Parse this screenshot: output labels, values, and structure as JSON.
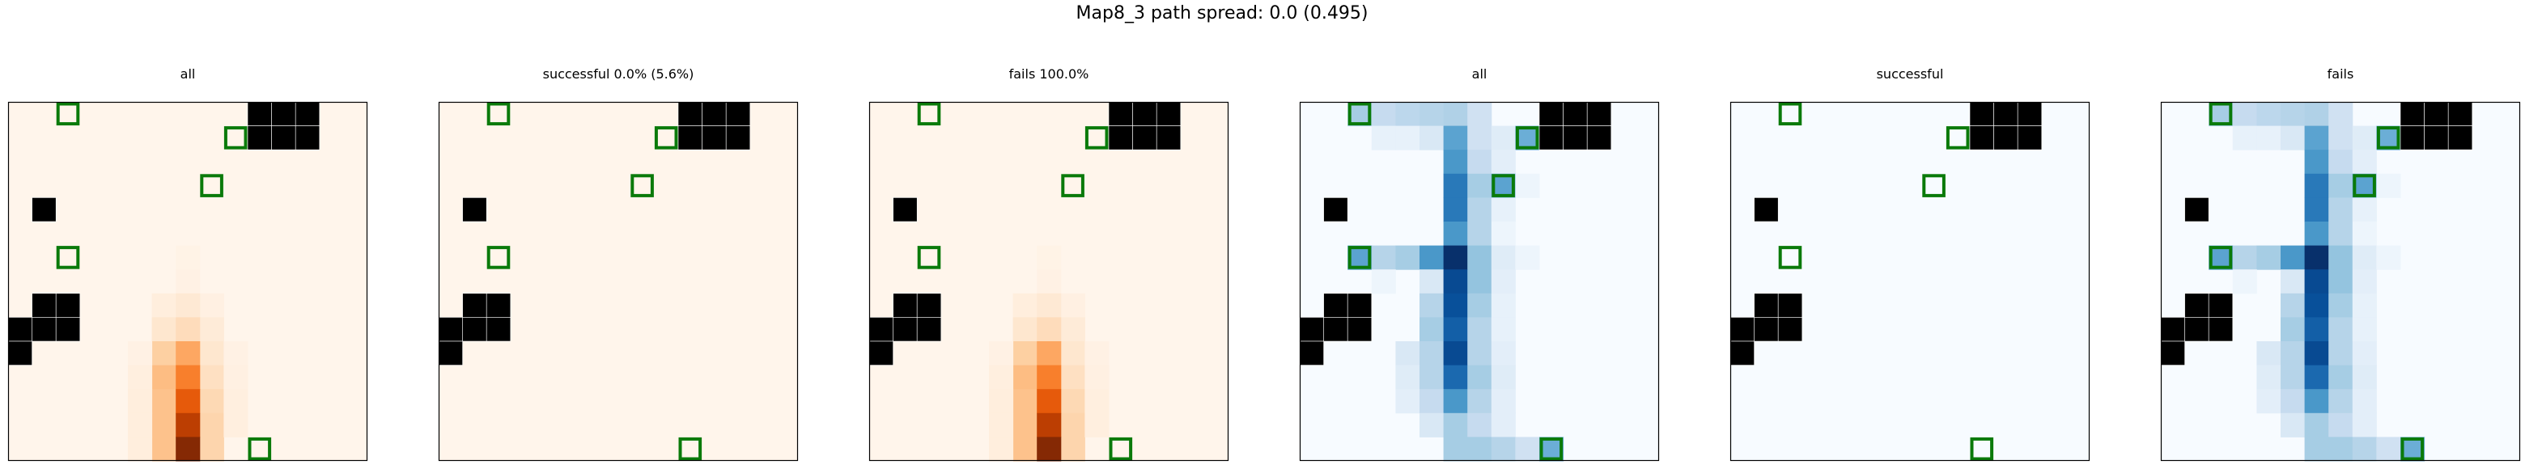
{
  "title": "Map8_3 path spread: 0.0 (0.495)",
  "chart_data": {
    "type": "heatmap",
    "title": "Map8_3 path spread: 0.0 (0.495)",
    "grid_size": [
      15,
      15
    ],
    "obstacles": [
      [
        10,
        0
      ],
      [
        11,
        0
      ],
      [
        12,
        0
      ],
      [
        10,
        1
      ],
      [
        11,
        1
      ],
      [
        12,
        1
      ],
      [
        1,
        4
      ],
      [
        1,
        8
      ],
      [
        2,
        8
      ],
      [
        1,
        9
      ],
      [
        2,
        9
      ],
      [
        0,
        9
      ],
      [
        0,
        10
      ]
    ],
    "goals": [
      [
        2,
        0
      ],
      [
        9,
        1
      ],
      [
        8,
        3
      ],
      [
        2,
        6
      ],
      [
        10,
        14
      ]
    ],
    "axes": false,
    "panels": [
      {
        "name": "all",
        "title": "all",
        "colormap": "Oranges",
        "cells": [
          [
            7,
            6,
            0.02
          ],
          [
            7,
            7,
            0.03
          ],
          [
            7,
            8,
            0.05
          ],
          [
            7,
            9,
            0.08
          ],
          [
            7,
            10,
            0.12
          ],
          [
            7,
            11,
            0.15
          ],
          [
            7,
            12,
            0.18
          ],
          [
            7,
            13,
            0.22
          ],
          [
            7,
            14,
            0.25
          ],
          [
            6,
            8,
            0.06
          ],
          [
            6,
            9,
            0.12
          ],
          [
            6,
            10,
            0.25
          ],
          [
            6,
            11,
            0.32
          ],
          [
            6,
            12,
            0.3
          ],
          [
            6,
            13,
            0.3
          ],
          [
            6,
            14,
            0.3
          ],
          [
            8,
            8,
            0.04
          ],
          [
            8,
            9,
            0.08
          ],
          [
            8,
            10,
            0.12
          ],
          [
            8,
            11,
            0.16
          ],
          [
            8,
            12,
            0.2
          ],
          [
            8,
            13,
            0.22
          ],
          [
            8,
            14,
            0.22
          ],
          [
            5,
            10,
            0.03
          ],
          [
            5,
            11,
            0.05
          ],
          [
            5,
            12,
            0.06
          ],
          [
            5,
            13,
            0.06
          ],
          [
            5,
            14,
            0.06
          ],
          [
            9,
            10,
            0.03
          ],
          [
            9,
            11,
            0.04
          ],
          [
            9,
            12,
            0.05
          ],
          [
            9,
            13,
            0.05
          ],
          [
            7,
            8,
            0.1
          ],
          [
            7,
            9,
            0.18
          ],
          [
            7,
            10,
            0.4
          ],
          [
            7,
            11,
            0.55
          ],
          [
            7,
            12,
            0.68
          ],
          [
            7,
            13,
            0.82
          ],
          [
            7,
            14,
            0.98
          ]
        ]
      },
      {
        "name": "successful",
        "title": "successful 0.0% (5.6%)",
        "colormap": "Oranges",
        "cells": []
      },
      {
        "name": "fails",
        "title": "fails 100.0%",
        "colormap": "Oranges",
        "cells": [
          [
            7,
            6,
            0.02
          ],
          [
            7,
            7,
            0.03
          ],
          [
            7,
            8,
            0.05
          ],
          [
            7,
            9,
            0.08
          ],
          [
            7,
            10,
            0.12
          ],
          [
            7,
            11,
            0.15
          ],
          [
            7,
            12,
            0.18
          ],
          [
            7,
            13,
            0.22
          ],
          [
            7,
            14,
            0.25
          ],
          [
            6,
            8,
            0.06
          ],
          [
            6,
            9,
            0.12
          ],
          [
            6,
            10,
            0.25
          ],
          [
            6,
            11,
            0.32
          ],
          [
            6,
            12,
            0.3
          ],
          [
            6,
            13,
            0.3
          ],
          [
            6,
            14,
            0.3
          ],
          [
            8,
            8,
            0.04
          ],
          [
            8,
            9,
            0.08
          ],
          [
            8,
            10,
            0.12
          ],
          [
            8,
            11,
            0.16
          ],
          [
            8,
            12,
            0.2
          ],
          [
            8,
            13,
            0.22
          ],
          [
            8,
            14,
            0.22
          ],
          [
            5,
            10,
            0.03
          ],
          [
            5,
            11,
            0.05
          ],
          [
            5,
            12,
            0.06
          ],
          [
            5,
            13,
            0.06
          ],
          [
            5,
            14,
            0.06
          ],
          [
            9,
            10,
            0.03
          ],
          [
            9,
            11,
            0.04
          ],
          [
            9,
            12,
            0.05
          ],
          [
            9,
            13,
            0.05
          ],
          [
            7,
            8,
            0.1
          ],
          [
            7,
            9,
            0.18
          ],
          [
            7,
            10,
            0.4
          ],
          [
            7,
            11,
            0.55
          ],
          [
            7,
            12,
            0.68
          ],
          [
            7,
            13,
            0.82
          ],
          [
            7,
            14,
            0.98
          ]
        ]
      },
      {
        "name": "all-blues",
        "title": "all",
        "colormap": "Blues",
        "cells": [
          [
            2,
            0,
            0.35
          ],
          [
            3,
            0,
            0.25
          ],
          [
            4,
            0,
            0.28
          ],
          [
            5,
            0,
            0.3
          ],
          [
            6,
            0,
            0.32
          ],
          [
            7,
            0,
            0.2
          ],
          [
            3,
            1,
            0.08
          ],
          [
            4,
            1,
            0.08
          ],
          [
            5,
            1,
            0.15
          ],
          [
            6,
            1,
            0.55
          ],
          [
            7,
            1,
            0.2
          ],
          [
            8,
            1,
            0.12
          ],
          [
            9,
            1,
            0.5
          ],
          [
            6,
            2,
            0.6
          ],
          [
            7,
            2,
            0.25
          ],
          [
            8,
            2,
            0.1
          ],
          [
            6,
            3,
            0.72
          ],
          [
            7,
            3,
            0.35
          ],
          [
            8,
            3,
            0.55
          ],
          [
            9,
            3,
            0.05
          ],
          [
            6,
            4,
            0.72
          ],
          [
            7,
            4,
            0.3
          ],
          [
            8,
            4,
            0.08
          ],
          [
            6,
            5,
            0.6
          ],
          [
            7,
            5,
            0.3
          ],
          [
            8,
            5,
            0.05
          ],
          [
            2,
            6,
            0.55
          ],
          [
            3,
            6,
            0.3
          ],
          [
            4,
            6,
            0.35
          ],
          [
            5,
            6,
            0.6
          ],
          [
            6,
            6,
            1.0
          ],
          [
            7,
            6,
            0.4
          ],
          [
            8,
            6,
            0.12
          ],
          [
            9,
            6,
            0.05
          ],
          [
            3,
            7,
            0.05
          ],
          [
            5,
            7,
            0.15
          ],
          [
            6,
            7,
            0.9
          ],
          [
            7,
            7,
            0.4
          ],
          [
            8,
            7,
            0.1
          ],
          [
            5,
            8,
            0.3
          ],
          [
            6,
            8,
            0.88
          ],
          [
            7,
            8,
            0.35
          ],
          [
            8,
            8,
            0.08
          ],
          [
            5,
            9,
            0.35
          ],
          [
            6,
            9,
            0.82
          ],
          [
            7,
            9,
            0.3
          ],
          [
            8,
            9,
            0.08
          ],
          [
            4,
            10,
            0.15
          ],
          [
            5,
            10,
            0.3
          ],
          [
            6,
            10,
            0.9
          ],
          [
            7,
            10,
            0.3
          ],
          [
            8,
            10,
            0.1
          ],
          [
            4,
            11,
            0.12
          ],
          [
            5,
            11,
            0.3
          ],
          [
            6,
            11,
            0.78
          ],
          [
            7,
            11,
            0.35
          ],
          [
            8,
            11,
            0.12
          ],
          [
            4,
            12,
            0.1
          ],
          [
            5,
            12,
            0.25
          ],
          [
            6,
            12,
            0.6
          ],
          [
            7,
            12,
            0.3
          ],
          [
            8,
            12,
            0.1
          ],
          [
            5,
            13,
            0.15
          ],
          [
            6,
            13,
            0.35
          ],
          [
            7,
            13,
            0.25
          ],
          [
            8,
            13,
            0.1
          ],
          [
            6,
            14,
            0.35
          ],
          [
            7,
            14,
            0.35
          ],
          [
            8,
            14,
            0.3
          ],
          [
            9,
            14,
            0.2
          ],
          [
            10,
            14,
            0.5
          ]
        ]
      },
      {
        "name": "successful-blues",
        "title": "successful",
        "colormap": "Blues",
        "cells": []
      },
      {
        "name": "fails-blues",
        "title": "fails",
        "colormap": "Blues",
        "cells": [
          [
            2,
            0,
            0.35
          ],
          [
            3,
            0,
            0.25
          ],
          [
            4,
            0,
            0.28
          ],
          [
            5,
            0,
            0.3
          ],
          [
            6,
            0,
            0.32
          ],
          [
            7,
            0,
            0.2
          ],
          [
            3,
            1,
            0.08
          ],
          [
            4,
            1,
            0.08
          ],
          [
            5,
            1,
            0.15
          ],
          [
            6,
            1,
            0.55
          ],
          [
            7,
            1,
            0.2
          ],
          [
            8,
            1,
            0.12
          ],
          [
            9,
            1,
            0.5
          ],
          [
            6,
            2,
            0.6
          ],
          [
            7,
            2,
            0.25
          ],
          [
            8,
            2,
            0.1
          ],
          [
            6,
            3,
            0.72
          ],
          [
            7,
            3,
            0.35
          ],
          [
            8,
            3,
            0.55
          ],
          [
            9,
            3,
            0.05
          ],
          [
            6,
            4,
            0.72
          ],
          [
            7,
            4,
            0.3
          ],
          [
            8,
            4,
            0.08
          ],
          [
            6,
            5,
            0.6
          ],
          [
            7,
            5,
            0.3
          ],
          [
            8,
            5,
            0.05
          ],
          [
            2,
            6,
            0.55
          ],
          [
            3,
            6,
            0.3
          ],
          [
            4,
            6,
            0.35
          ],
          [
            5,
            6,
            0.6
          ],
          [
            6,
            6,
            1.0
          ],
          [
            7,
            6,
            0.4
          ],
          [
            8,
            6,
            0.12
          ],
          [
            9,
            6,
            0.05
          ],
          [
            3,
            7,
            0.05
          ],
          [
            5,
            7,
            0.15
          ],
          [
            6,
            7,
            0.9
          ],
          [
            7,
            7,
            0.4
          ],
          [
            8,
            7,
            0.1
          ],
          [
            5,
            8,
            0.3
          ],
          [
            6,
            8,
            0.88
          ],
          [
            7,
            8,
            0.35
          ],
          [
            8,
            8,
            0.08
          ],
          [
            5,
            9,
            0.35
          ],
          [
            6,
            9,
            0.82
          ],
          [
            7,
            9,
            0.3
          ],
          [
            8,
            9,
            0.08
          ],
          [
            4,
            10,
            0.15
          ],
          [
            5,
            10,
            0.3
          ],
          [
            6,
            10,
            0.9
          ],
          [
            7,
            10,
            0.3
          ],
          [
            8,
            10,
            0.1
          ],
          [
            4,
            11,
            0.12
          ],
          [
            5,
            11,
            0.3
          ],
          [
            6,
            11,
            0.78
          ],
          [
            7,
            11,
            0.35
          ],
          [
            8,
            11,
            0.12
          ],
          [
            4,
            12,
            0.1
          ],
          [
            5,
            12,
            0.25
          ],
          [
            6,
            12,
            0.6
          ],
          [
            7,
            12,
            0.3
          ],
          [
            8,
            12,
            0.1
          ],
          [
            5,
            13,
            0.15
          ],
          [
            6,
            13,
            0.35
          ],
          [
            7,
            13,
            0.25
          ],
          [
            8,
            13,
            0.1
          ],
          [
            6,
            14,
            0.35
          ],
          [
            7,
            14,
            0.35
          ],
          [
            8,
            14,
            0.3
          ],
          [
            9,
            14,
            0.2
          ],
          [
            10,
            14,
            0.5
          ]
        ]
      }
    ],
    "colors": {
      "oranges_low": "#fff5eb",
      "oranges_high": "#7f2704",
      "blues_low": "#f7fbff",
      "blues_high": "#08306b",
      "obstacle": "#000000",
      "goal_outline": "#0a7a0a"
    }
  }
}
